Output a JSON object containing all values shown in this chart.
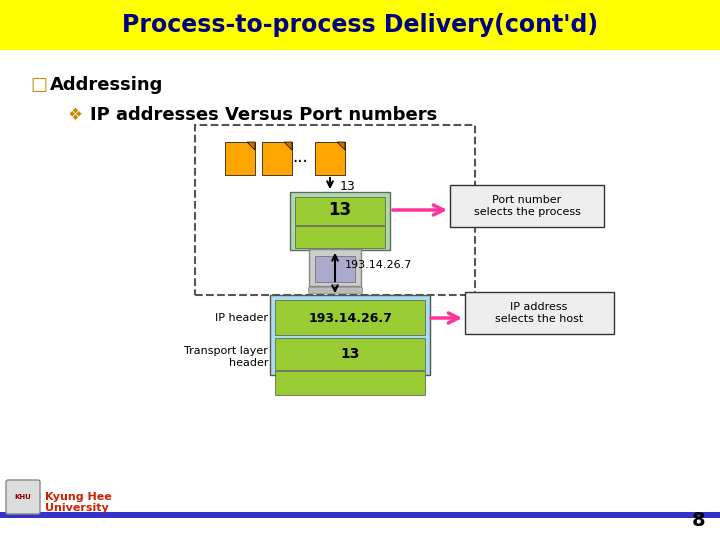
{
  "title": "Process-to-process Delivery(cont'd)",
  "title_bg": "#FFFF00",
  "title_color": "#000080",
  "bullet1": "Addressing",
  "bullet2": "IP addresses Versus Port numbers",
  "bullet1_marker": "□",
  "bullet2_marker": "❖",
  "bg_color": "#FFFFFF",
  "footer_text1": "Kyung Hee",
  "footer_text2": "University",
  "footer_bar_color": "#3333CC",
  "page_number": "8",
  "dashed_box_color": "#555555",
  "doc_color": "#FFA500",
  "port_box_color": "#99CC33",
  "ip_box_light": "#AADDEE",
  "ip_box_green": "#99CC33",
  "annotation_box1": "Port number\nselects the process",
  "annotation_box2": "IP address\nselects the host",
  "arrow_color": "#FF3399",
  "ip_label": "IP header",
  "transport_label": "Transport layer\nheader",
  "ip_value": "193.14.26.7",
  "port_value": "13",
  "dots_text": "...",
  "ip_addr_label": "193.14.26.7",
  "num_label": "13"
}
